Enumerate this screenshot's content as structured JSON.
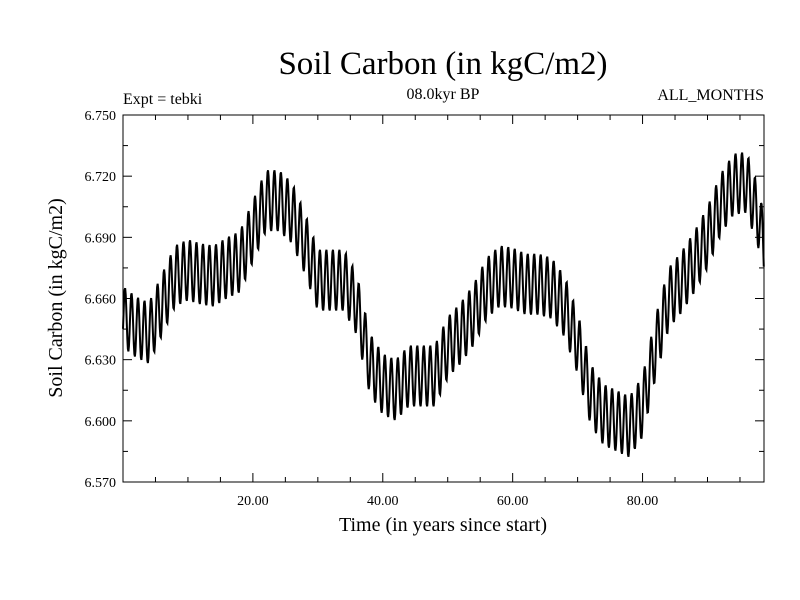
{
  "chart_data": {
    "type": "line",
    "title": "Soil Carbon (in kgC/m2)",
    "subtitle": "08.0kyr BP",
    "left_annotation": "Expt = tebki",
    "right_annotation": "ALL_MONTHS",
    "xlabel": "Time (in years since start)",
    "ylabel": "Soil Carbon (in kgC/m2)",
    "xlim": [
      0,
      98.7
    ],
    "ylim": [
      6.57,
      6.75
    ],
    "x_ticks": [
      {
        "value": 20,
        "label": "20.00"
      },
      {
        "value": 40,
        "label": "40.00"
      },
      {
        "value": 60,
        "label": "60.00"
      },
      {
        "value": 80,
        "label": "80.00"
      }
    ],
    "y_ticks": [
      {
        "value": 6.57,
        "label": "6.570"
      },
      {
        "value": 6.6,
        "label": "6.600"
      },
      {
        "value": 6.63,
        "label": "6.630"
      },
      {
        "value": 6.66,
        "label": "6.660"
      },
      {
        "value": 6.69,
        "label": "6.690"
      },
      {
        "value": 6.72,
        "label": "6.720"
      },
      {
        "value": 6.75,
        "label": "6.750"
      }
    ],
    "series": [
      {
        "name": "Soil Carbon",
        "color": "#000000",
        "sampling": "monthly (12 samples per year); annual-cycle amplitude about ±0.015 around the listed trend",
        "annual_cycle_amplitude": 0.015,
        "samples_per_year": 12,
        "trend": {
          "x": [
            0,
            2,
            4,
            6,
            8,
            10,
            12,
            14,
            16,
            18,
            20,
            22,
            24,
            26,
            28,
            30,
            32,
            34,
            36,
            38,
            40,
            42,
            44,
            46,
            48,
            50,
            52,
            54,
            56,
            58,
            60,
            62,
            64,
            66,
            68,
            70,
            72,
            74,
            76,
            78,
            80,
            82,
            84,
            86,
            88,
            90,
            92,
            94,
            96,
            98,
            98.7
          ],
          "y": [
            6.651,
            6.646,
            6.643,
            6.657,
            6.671,
            6.674,
            6.672,
            6.671,
            6.675,
            6.678,
            6.693,
            6.708,
            6.708,
            6.702,
            6.687,
            6.669,
            6.669,
            6.669,
            6.657,
            6.628,
            6.618,
            6.615,
            6.622,
            6.622,
            6.622,
            6.636,
            6.643,
            6.652,
            6.665,
            6.671,
            6.67,
            6.667,
            6.667,
            6.665,
            6.656,
            6.638,
            6.613,
            6.603,
            6.6,
            6.597,
            6.607,
            6.636,
            6.66,
            6.668,
            6.678,
            6.69,
            6.706,
            6.716,
            6.717,
            6.698,
            6.684
          ]
        }
      }
    ]
  }
}
